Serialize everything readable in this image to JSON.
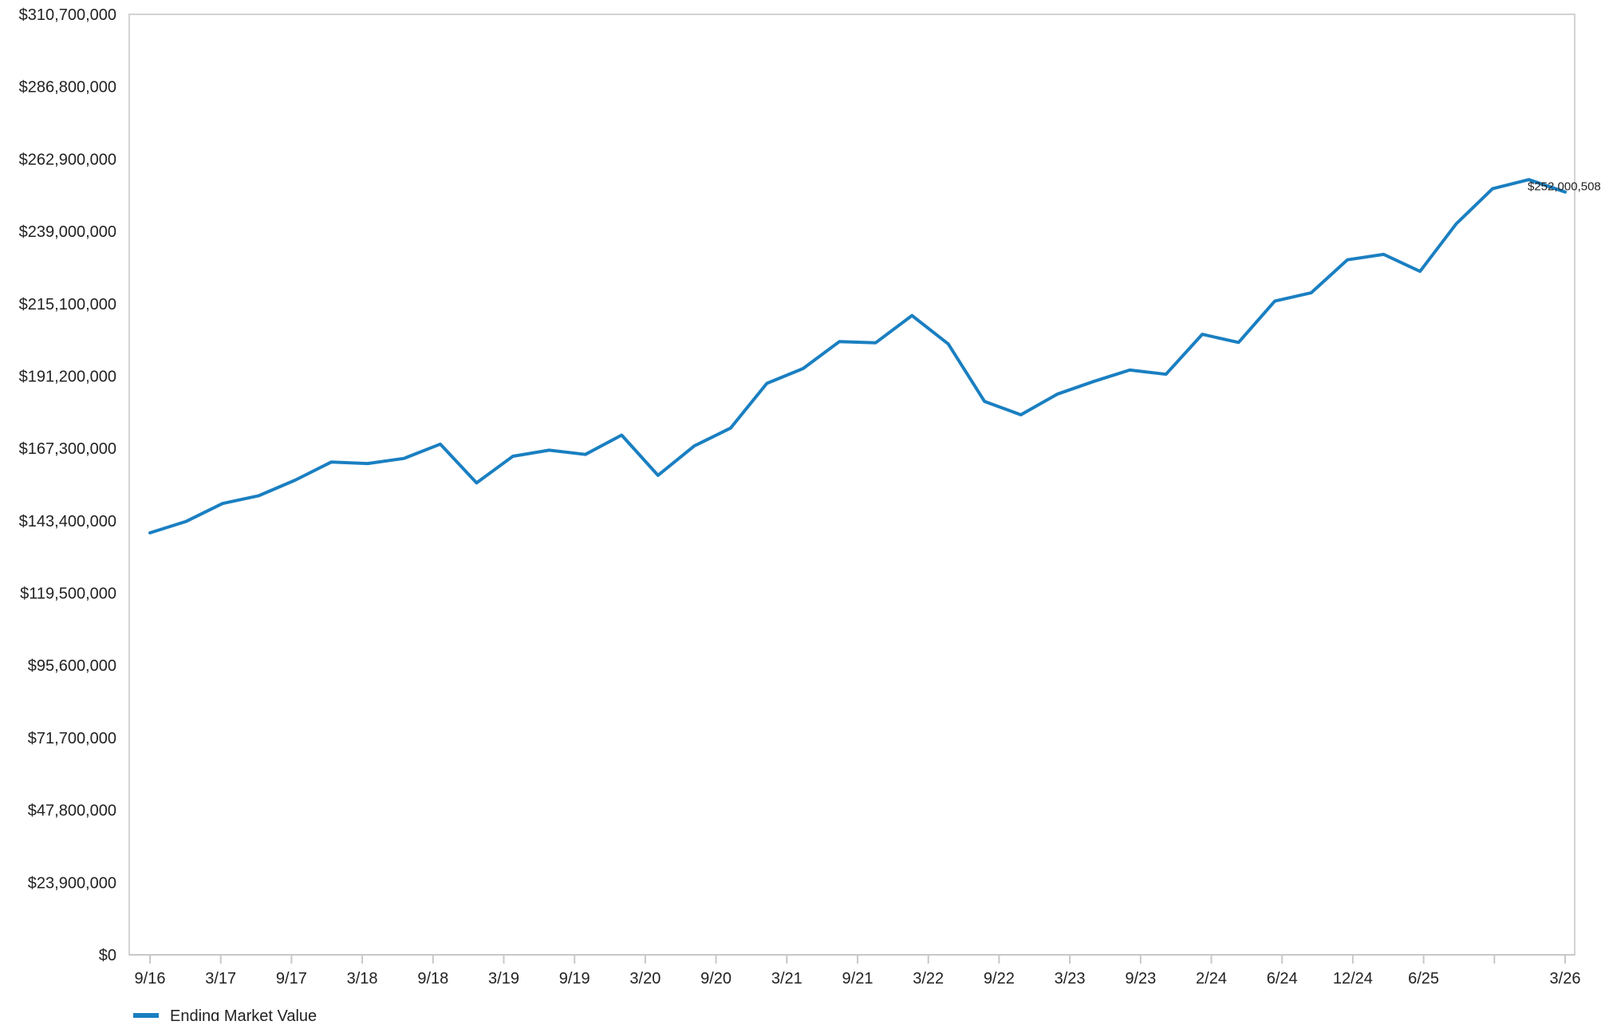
{
  "chart_data": {
    "type": "line",
    "title": "",
    "xlabel": "",
    "ylabel": "",
    "ylim": [
      0,
      310700000
    ],
    "y_ticks": [
      0,
      23900000,
      47800000,
      71700000,
      95600000,
      119500000,
      143400000,
      167300000,
      191200000,
      215100000,
      239000000,
      262900000,
      286800000,
      310700000
    ],
    "y_tick_labels": [
      "$0",
      "$23,900,000",
      "$47,800,000",
      "$71,700,000",
      "$95,600,000",
      "$119,500,000",
      "$143,400,000",
      "$167,300,000",
      "$191,200,000",
      "$215,100,000",
      "$239,000,000",
      "$262,900,000",
      "$286,800,000",
      "$310,700,000"
    ],
    "x_tick_labels": [
      "9/16",
      "3/17",
      "9/17",
      "3/18",
      "9/18",
      "3/19",
      "9/19",
      "3/20",
      "9/20",
      "3/21",
      "9/21",
      "3/22",
      "9/22",
      "3/23",
      "9/23",
      "2/24",
      "6/24",
      "12/24",
      "6/25",
      "",
      "3/26"
    ],
    "grid": false,
    "legend_position": "bottom-left",
    "series": [
      {
        "name": "Ending Market Value",
        "color": "#1a7fc1",
        "values": [
          139400000,
          143200000,
          149100000,
          151700000,
          156800000,
          162800000,
          162300000,
          164000000,
          168700000,
          155900000,
          164700000,
          166700000,
          165300000,
          171700000,
          158400000,
          168100000,
          174000000,
          188800000,
          193700000,
          202600000,
          202200000,
          211200000,
          201800000,
          182800000,
          178400000,
          185200000,
          189400000,
          193200000,
          191800000,
          205000000,
          202300000,
          216000000,
          218700000,
          229600000,
          231400000,
          225800000,
          241500000,
          253100000,
          256100000,
          252000508
        ]
      }
    ],
    "end_value_label": "$252,000,508"
  }
}
